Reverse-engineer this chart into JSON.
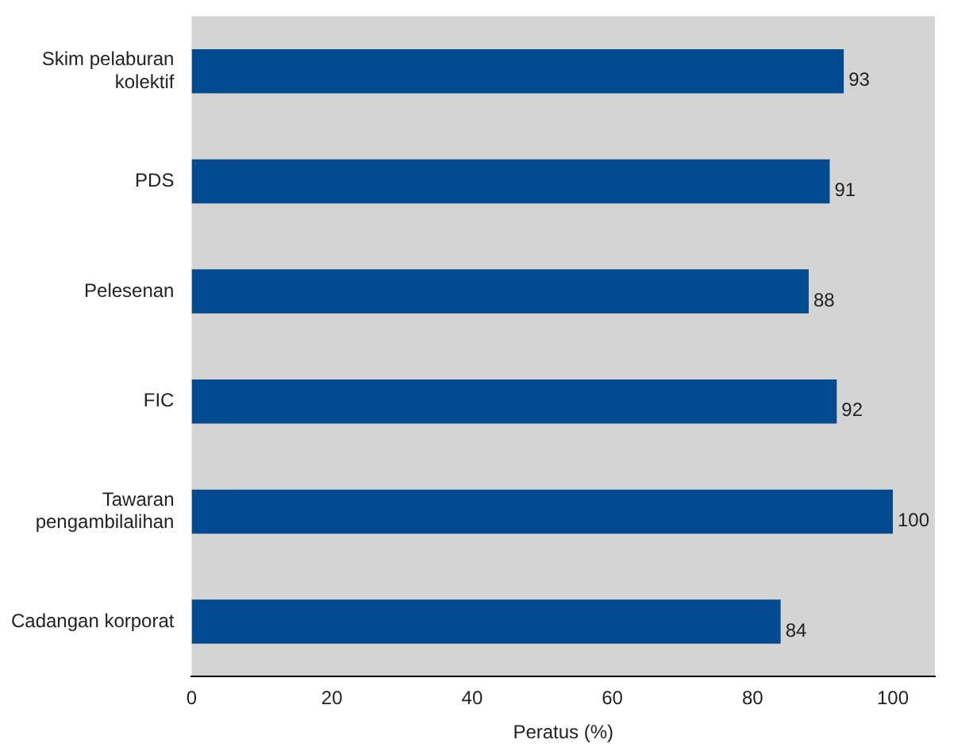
{
  "chart_data": {
    "type": "bar",
    "orientation": "horizontal",
    "xlabel": "Peratus (%)",
    "categories": [
      "Skim pelaburan kolektif",
      "PDS",
      "Pelesenan",
      "FIC",
      "Tawaran pengambilalihan",
      "Cadangan korporat"
    ],
    "values": [
      93,
      91,
      88,
      92,
      100,
      84
    ],
    "color": "#004a8f",
    "xlim": [
      0,
      106
    ],
    "xticks": [
      0,
      20,
      40,
      60,
      80,
      100
    ],
    "grid": false,
    "data_labels": true,
    "legend": false
  }
}
